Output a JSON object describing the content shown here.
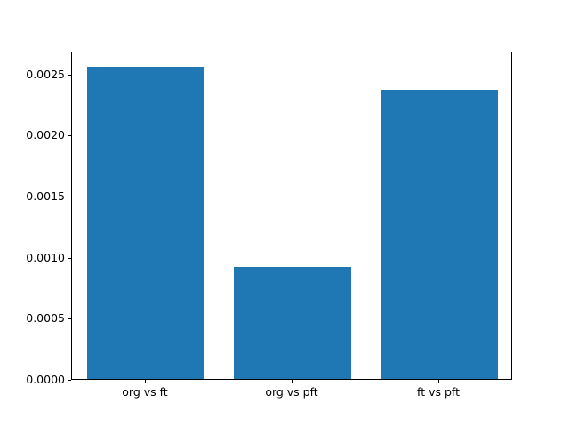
{
  "figure": {
    "background": "#ffffff",
    "axes_edge_color": "#000000",
    "text_color": "#000000"
  },
  "chart_data": {
    "type": "bar",
    "title": "",
    "xlabel": "",
    "ylabel": "",
    "categories": [
      "org vs ft",
      "org vs pft",
      "ft vs pft"
    ],
    "values": [
      0.00256,
      0.00092,
      0.00237
    ],
    "bar_color": "#1f77b4",
    "bar_width_fraction": 0.8,
    "xlim": [
      -0.5,
      2.5
    ],
    "ylim": [
      0,
      0.002688
    ],
    "yticks": {
      "values": [
        0.0,
        0.0005,
        0.001,
        0.0015,
        0.002,
        0.0025
      ],
      "labels": [
        "0.0000",
        "0.0005",
        "0.0010",
        "0.0015",
        "0.0020",
        "0.0025"
      ]
    },
    "grid": false,
    "legend": null
  }
}
